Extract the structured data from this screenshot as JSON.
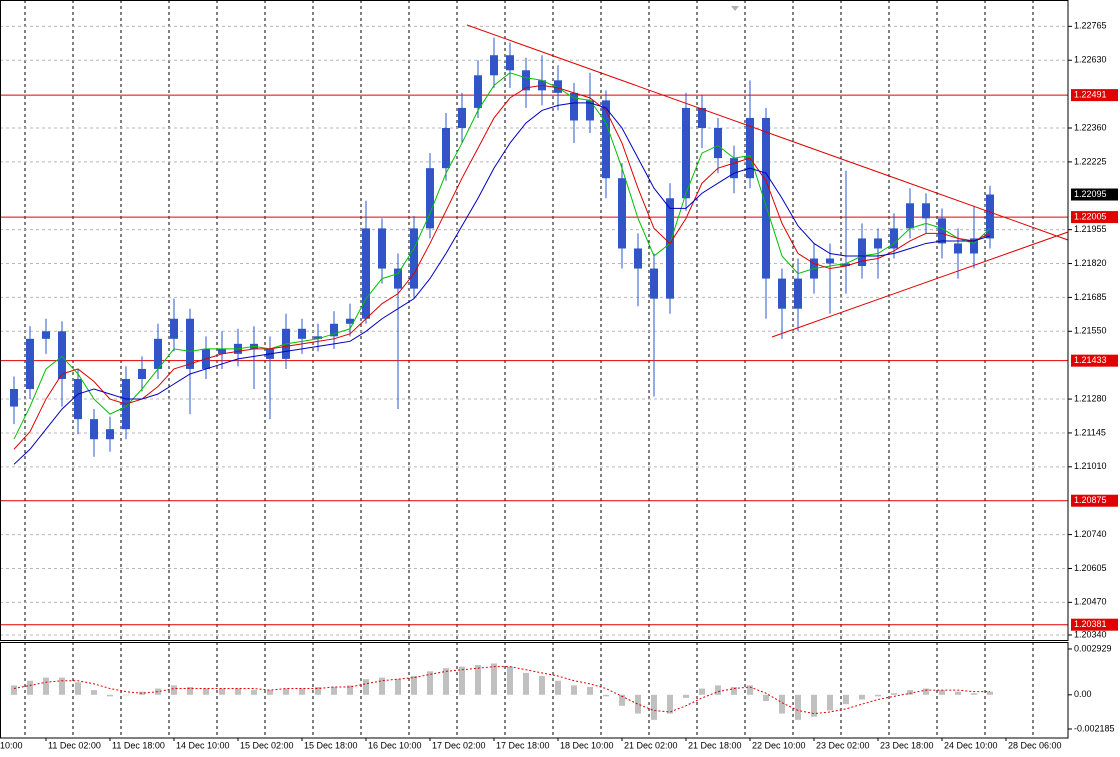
{
  "chart_data": [
    {
      "type": "candlestick",
      "first_x_label": "10:00",
      "categories": [
        null,
        "11 Dec 02:00",
        null,
        null,
        null,
        "11 Dec 18:00",
        null,
        null,
        null,
        "14 Dec 10:00",
        null,
        null,
        null,
        "15 Dec 02:00",
        null,
        null,
        null,
        "15 Dec 18:00",
        null,
        null,
        null,
        "16 Dec 10:00",
        null,
        null,
        null,
        "17 Dec 02:00",
        null,
        null,
        null,
        "17 Dec 18:00",
        null,
        null,
        null,
        "18 Dec 10:00",
        null,
        null,
        null,
        "21 Dec 02:00",
        null,
        null,
        null,
        "21 Dec 18:00",
        null,
        null,
        null,
        "22 Dec 10:00",
        null,
        null,
        null,
        "23 Dec 02:00",
        null,
        null,
        null,
        "23 Dec 18:00",
        null,
        null,
        null,
        "24 Dec 10:00",
        null,
        null,
        null,
        "28 Dec 06:00"
      ],
      "color": "#2f55c8",
      "open": [
        1.2125,
        1.2132,
        1.2152,
        1.2155,
        1.2136,
        1.212,
        1.2112,
        1.2116,
        1.2136,
        1.214,
        1.2152,
        1.216,
        1.214,
        1.2148,
        1.2146,
        1.215,
        1.2148,
        1.2144,
        1.2156,
        1.2152,
        1.2153,
        1.2158,
        1.216,
        1.2196,
        1.218,
        1.2172,
        1.2196,
        1.222,
        1.2236,
        1.2244,
        1.2257,
        1.2265,
        1.2259,
        1.2251,
        1.2255,
        1.225,
        1.2239,
        1.2247,
        1.2216,
        1.2188,
        1.218,
        1.2168,
        1.2208,
        1.2244,
        1.2236,
        1.2224,
        1.2216,
        1.224,
        1.2176,
        1.2164,
        1.2176,
        1.2184,
        1.2182,
        1.2181,
        1.2192,
        1.2188,
        1.2196,
        1.2206,
        1.22,
        1.219,
        1.2186,
        1.2192
      ],
      "high": [
        1.2137,
        1.2157,
        1.216,
        1.2159,
        1.214,
        1.2124,
        1.2121,
        1.2141,
        1.2145,
        1.2158,
        1.2168,
        1.2164,
        1.2153,
        1.2155,
        1.2156,
        1.2157,
        1.2153,
        1.2162,
        1.216,
        1.2158,
        1.2163,
        1.2166,
        1.2207,
        1.22,
        1.2186,
        1.2201,
        1.2226,
        1.2242,
        1.225,
        1.2263,
        1.2272,
        1.227,
        1.2264,
        1.2265,
        1.2261,
        1.2254,
        1.2258,
        1.2251,
        1.2222,
        1.2194,
        1.2186,
        1.2214,
        1.225,
        1.2249,
        1.224,
        1.2229,
        1.2255,
        1.2244,
        1.218,
        1.2184,
        1.219,
        1.219,
        1.2219,
        1.2198,
        1.2196,
        1.2202,
        1.2212,
        1.221,
        1.2204,
        1.2196,
        1.2205,
        1.2213
      ],
      "low": [
        1.2118,
        1.2128,
        1.2146,
        1.2125,
        1.2114,
        1.2105,
        1.2107,
        1.2112,
        1.2131,
        1.2136,
        1.2147,
        1.2122,
        1.2136,
        1.214,
        1.2141,
        1.2132,
        1.212,
        1.214,
        1.2146,
        1.2147,
        1.2148,
        1.2153,
        1.2158,
        1.2174,
        1.2124,
        1.2168,
        1.2192,
        1.2215,
        1.223,
        1.224,
        1.2252,
        1.2252,
        1.2244,
        1.2245,
        1.2243,
        1.223,
        1.2234,
        1.2208,
        1.218,
        1.2165,
        1.2129,
        1.2162,
        1.2203,
        1.2228,
        1.2218,
        1.221,
        1.2212,
        1.216,
        1.2152,
        1.2155,
        1.217,
        1.2162,
        1.217,
        1.2176,
        1.2176,
        1.2184,
        1.2192,
        1.2194,
        1.2184,
        1.2176,
        1.218,
        1.2188
      ],
      "close": [
        1.2132,
        1.2152,
        1.2155,
        1.2136,
        1.212,
        1.2112,
        1.2116,
        1.2136,
        1.214,
        1.2152,
        1.216,
        1.214,
        1.2148,
        1.2146,
        1.215,
        1.2148,
        1.2144,
        1.2156,
        1.2152,
        1.2153,
        1.2158,
        1.216,
        1.2196,
        1.218,
        1.2172,
        1.2196,
        1.222,
        1.2236,
        1.2244,
        1.2257,
        1.2265,
        1.2259,
        1.2251,
        1.2255,
        1.225,
        1.2239,
        1.2247,
        1.2216,
        1.2188,
        1.218,
        1.2168,
        1.2208,
        1.2244,
        1.2236,
        1.2224,
        1.2216,
        1.224,
        1.2176,
        1.2164,
        1.2176,
        1.2184,
        1.2182,
        1.2181,
        1.2192,
        1.2188,
        1.2196,
        1.2206,
        1.22,
        1.219,
        1.2186,
        1.2192,
        1.22095
      ],
      "series": [
        {
          "color": "#00c000",
          "values": [
            1.2112,
            1.2125,
            1.214,
            1.2145,
            1.2138,
            1.2128,
            1.2122,
            1.2125,
            1.2132,
            1.214,
            1.2148,
            1.2147,
            1.2148,
            1.2148,
            1.2148,
            1.2149,
            1.2148,
            1.215,
            1.2151,
            1.2152,
            1.2154,
            1.2156,
            1.2168,
            1.2176,
            1.2178,
            1.2188,
            1.2202,
            1.2218,
            1.223,
            1.2243,
            1.2253,
            1.2258,
            1.2256,
            1.2255,
            1.2252,
            1.2248,
            1.2247,
            1.2238,
            1.222,
            1.22,
            1.2185,
            1.219,
            1.221,
            1.2226,
            1.2229,
            1.2224,
            1.2225,
            1.2205,
            1.2185,
            1.2178,
            1.218,
            1.2181,
            1.2182,
            1.2185,
            1.2186,
            1.219,
            1.2196,
            1.2198,
            1.2196,
            1.2192,
            1.219,
            1.2196
          ]
        },
        {
          "color": "#dd0000",
          "values": [
            1.2108,
            1.2115,
            1.2128,
            1.2138,
            1.214,
            1.2135,
            1.2128,
            1.2126,
            1.2128,
            1.2133,
            1.214,
            1.2142,
            1.2144,
            1.2146,
            1.2147,
            1.2148,
            1.2148,
            1.2149,
            1.215,
            1.2151,
            1.2152,
            1.2154,
            1.216,
            1.2166,
            1.217,
            1.2178,
            1.219,
            1.2203,
            1.2216,
            1.2228,
            1.224,
            1.2248,
            1.2252,
            1.2253,
            1.2252,
            1.225,
            1.2248,
            1.2243,
            1.223,
            1.2212,
            1.2196,
            1.219,
            1.22,
            1.2214,
            1.222,
            1.2222,
            1.2224,
            1.2215,
            1.2198,
            1.2186,
            1.2182,
            1.218,
            1.2181,
            1.2183,
            1.2184,
            1.2187,
            1.2191,
            1.2194,
            1.2194,
            1.2192,
            1.2191,
            1.2194
          ]
        },
        {
          "color": "#0000c0",
          "values": [
            1.2102,
            1.2108,
            1.2116,
            1.2124,
            1.213,
            1.2132,
            1.213,
            1.2128,
            1.2128,
            1.213,
            1.2134,
            1.2138,
            1.214,
            1.2142,
            1.2144,
            1.2145,
            1.2146,
            1.2147,
            1.2148,
            1.2149,
            1.215,
            1.2151,
            1.2155,
            1.216,
            1.2164,
            1.2168,
            1.2176,
            1.2186,
            1.2197,
            1.2208,
            1.222,
            1.223,
            1.2238,
            1.2243,
            1.2245,
            1.2246,
            1.2246,
            1.2244,
            1.2236,
            1.2224,
            1.2212,
            1.2204,
            1.2204,
            1.221,
            1.2214,
            1.2218,
            1.222,
            1.2218,
            1.2208,
            1.2197,
            1.219,
            1.2186,
            1.2185,
            1.2185,
            1.2185,
            1.2186,
            1.2188,
            1.219,
            1.2191,
            1.2191,
            1.2191,
            1.2193
          ]
        }
      ],
      "levels": [
        1.22491,
        1.22005,
        1.21433,
        1.20875,
        1.20381
      ],
      "level_color": "#e00000",
      "current_price": 1.22095,
      "ylim": [
        1.2032,
        1.2287
      ],
      "yticks": [
        1.22765,
        {
          "value": 1.2263,
          "label": "1.22630"
        },
        {
          "value": 1.2236,
          "label": "1.22360"
        },
        1.22225,
        1.21955,
        {
          "value": 1.2182,
          "label": "1.21820"
        },
        1.21685,
        {
          "value": 1.2155,
          "label": "1.21550"
        },
        {
          "value": 1.2128,
          "label": "1.21280"
        },
        1.21145,
        {
          "value": 1.2101,
          "label": "1.21010"
        },
        {
          "value": 1.2074,
          "label": "1.20740"
        },
        1.20605,
        {
          "value": 1.2047,
          "label": "1.20470"
        },
        {
          "value": 1.2034,
          "label": "1.20340"
        }
      ],
      "grid": true
    },
    {
      "type": "bar",
      "color": "#c0c0c0",
      "values": [
        0.0006,
        0.0009,
        0.0011,
        0.0011,
        0.0008,
        0.0003,
        -0.0001,
        0.0,
        0.0002,
        0.0004,
        0.0006,
        0.0005,
        0.0004,
        0.0004,
        0.0004,
        0.0003,
        0.0003,
        0.0004,
        0.0004,
        0.0005,
        0.0005,
        0.0006,
        0.001,
        0.0011,
        0.001,
        0.0012,
        0.0015,
        0.0017,
        0.0018,
        0.0019,
        0.002,
        0.0018,
        0.0014,
        0.0012,
        0.0009,
        0.0006,
        0.0005,
        -0.0001,
        -0.0007,
        -0.0012,
        -0.0016,
        -0.0012,
        -0.0002,
        0.0004,
        0.0006,
        0.0005,
        0.0006,
        -0.0004,
        -0.0012,
        -0.0016,
        -0.0014,
        -0.001,
        -0.0006,
        -0.0003,
        -0.0001,
        0.0001,
        0.0003,
        0.0004,
        0.0003,
        0.0002,
        0.0001,
        0.0002
      ],
      "signal": {
        "color": "#dd0000",
        "values": [
          0.0004,
          0.0006,
          0.0008,
          0.0009,
          0.0009,
          0.0007,
          0.0004,
          0.0002,
          0.0001,
          0.0002,
          0.0004,
          0.0004,
          0.0004,
          0.0004,
          0.0004,
          0.0004,
          0.0003,
          0.0004,
          0.0004,
          0.0004,
          0.0005,
          0.0005,
          0.0007,
          0.0009,
          0.001,
          0.0011,
          0.0013,
          0.0015,
          0.0016,
          0.0017,
          0.0018,
          0.0018,
          0.0016,
          0.0014,
          0.0012,
          0.0009,
          0.0007,
          0.0004,
          -0.0001,
          -0.0006,
          -0.001,
          -0.0011,
          -0.0007,
          -0.0002,
          0.0002,
          0.0004,
          0.0005,
          0.0001,
          -0.0005,
          -0.001,
          -0.0012,
          -0.0011,
          -0.0009,
          -0.0006,
          -0.0003,
          -0.0001,
          0.0001,
          0.0003,
          0.0003,
          0.0003,
          0.0002,
          0.0002
        ]
      },
      "ylim": [
        -0.00276,
        0.00331
      ],
      "yticks": [
        0.002929,
        {
          "value": 0,
          "label": "0.00"
        },
        -0.002185
      ]
    }
  ]
}
